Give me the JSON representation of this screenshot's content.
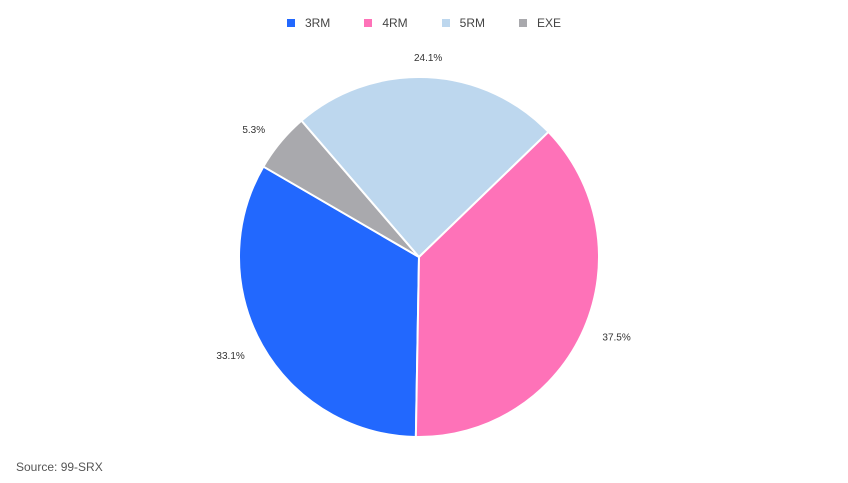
{
  "chart_data": {
    "type": "pie",
    "categories": [
      "3RM",
      "4RM",
      "5RM",
      "EXE"
    ],
    "values": [
      33.1,
      37.5,
      24.1,
      5.3
    ],
    "data_labels": [
      "33.1%",
      "37.5%",
      "24.1%",
      "5.3%"
    ],
    "colors": [
      "#2268fe",
      "#fe72b8",
      "#bdd7ee",
      "#a9a9ad"
    ],
    "legend_placement": "top-center",
    "title": ""
  },
  "legend": {
    "items": [
      {
        "label": "3RM",
        "color": "#2268fe"
      },
      {
        "label": "4RM",
        "color": "#fe72b8"
      },
      {
        "label": "5RM",
        "color": "#bdd7ee"
      },
      {
        "label": "EXE",
        "color": "#a9a9ad"
      }
    ]
  },
  "footer": {
    "source": "Source: 99-SRX"
  }
}
